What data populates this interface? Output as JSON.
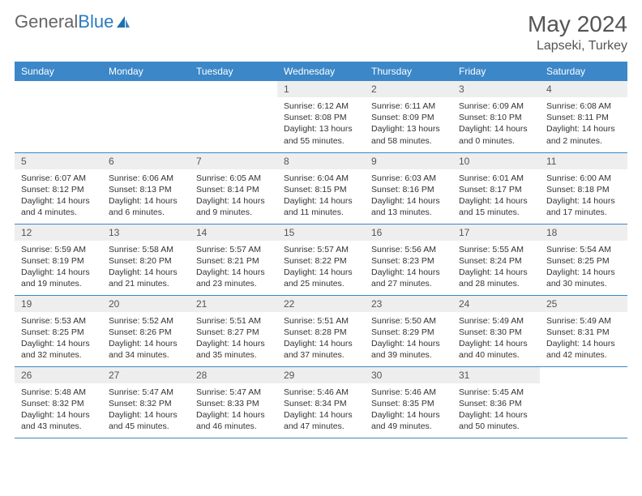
{
  "brand": {
    "part1": "General",
    "part2": "Blue"
  },
  "title": "May 2024",
  "location": "Lapseki, Turkey",
  "colors": {
    "header_bg": "#3b87c8",
    "header_text": "#ffffff",
    "daynum_bg": "#eeeeee",
    "border": "#3b87c8",
    "logo_blue": "#2b7bbf"
  },
  "weekdays": [
    "Sunday",
    "Monday",
    "Tuesday",
    "Wednesday",
    "Thursday",
    "Friday",
    "Saturday"
  ],
  "weeks": [
    [
      {
        "empty": true
      },
      {
        "empty": true
      },
      {
        "empty": true
      },
      {
        "num": "1",
        "sunrise": "Sunrise: 6:12 AM",
        "sunset": "Sunset: 8:08 PM",
        "daylight": "Daylight: 13 hours and 55 minutes."
      },
      {
        "num": "2",
        "sunrise": "Sunrise: 6:11 AM",
        "sunset": "Sunset: 8:09 PM",
        "daylight": "Daylight: 13 hours and 58 minutes."
      },
      {
        "num": "3",
        "sunrise": "Sunrise: 6:09 AM",
        "sunset": "Sunset: 8:10 PM",
        "daylight": "Daylight: 14 hours and 0 minutes."
      },
      {
        "num": "4",
        "sunrise": "Sunrise: 6:08 AM",
        "sunset": "Sunset: 8:11 PM",
        "daylight": "Daylight: 14 hours and 2 minutes."
      }
    ],
    [
      {
        "num": "5",
        "sunrise": "Sunrise: 6:07 AM",
        "sunset": "Sunset: 8:12 PM",
        "daylight": "Daylight: 14 hours and 4 minutes."
      },
      {
        "num": "6",
        "sunrise": "Sunrise: 6:06 AM",
        "sunset": "Sunset: 8:13 PM",
        "daylight": "Daylight: 14 hours and 6 minutes."
      },
      {
        "num": "7",
        "sunrise": "Sunrise: 6:05 AM",
        "sunset": "Sunset: 8:14 PM",
        "daylight": "Daylight: 14 hours and 9 minutes."
      },
      {
        "num": "8",
        "sunrise": "Sunrise: 6:04 AM",
        "sunset": "Sunset: 8:15 PM",
        "daylight": "Daylight: 14 hours and 11 minutes."
      },
      {
        "num": "9",
        "sunrise": "Sunrise: 6:03 AM",
        "sunset": "Sunset: 8:16 PM",
        "daylight": "Daylight: 14 hours and 13 minutes."
      },
      {
        "num": "10",
        "sunrise": "Sunrise: 6:01 AM",
        "sunset": "Sunset: 8:17 PM",
        "daylight": "Daylight: 14 hours and 15 minutes."
      },
      {
        "num": "11",
        "sunrise": "Sunrise: 6:00 AM",
        "sunset": "Sunset: 8:18 PM",
        "daylight": "Daylight: 14 hours and 17 minutes."
      }
    ],
    [
      {
        "num": "12",
        "sunrise": "Sunrise: 5:59 AM",
        "sunset": "Sunset: 8:19 PM",
        "daylight": "Daylight: 14 hours and 19 minutes."
      },
      {
        "num": "13",
        "sunrise": "Sunrise: 5:58 AM",
        "sunset": "Sunset: 8:20 PM",
        "daylight": "Daylight: 14 hours and 21 minutes."
      },
      {
        "num": "14",
        "sunrise": "Sunrise: 5:57 AM",
        "sunset": "Sunset: 8:21 PM",
        "daylight": "Daylight: 14 hours and 23 minutes."
      },
      {
        "num": "15",
        "sunrise": "Sunrise: 5:57 AM",
        "sunset": "Sunset: 8:22 PM",
        "daylight": "Daylight: 14 hours and 25 minutes."
      },
      {
        "num": "16",
        "sunrise": "Sunrise: 5:56 AM",
        "sunset": "Sunset: 8:23 PM",
        "daylight": "Daylight: 14 hours and 27 minutes."
      },
      {
        "num": "17",
        "sunrise": "Sunrise: 5:55 AM",
        "sunset": "Sunset: 8:24 PM",
        "daylight": "Daylight: 14 hours and 28 minutes."
      },
      {
        "num": "18",
        "sunrise": "Sunrise: 5:54 AM",
        "sunset": "Sunset: 8:25 PM",
        "daylight": "Daylight: 14 hours and 30 minutes."
      }
    ],
    [
      {
        "num": "19",
        "sunrise": "Sunrise: 5:53 AM",
        "sunset": "Sunset: 8:25 PM",
        "daylight": "Daylight: 14 hours and 32 minutes."
      },
      {
        "num": "20",
        "sunrise": "Sunrise: 5:52 AM",
        "sunset": "Sunset: 8:26 PM",
        "daylight": "Daylight: 14 hours and 34 minutes."
      },
      {
        "num": "21",
        "sunrise": "Sunrise: 5:51 AM",
        "sunset": "Sunset: 8:27 PM",
        "daylight": "Daylight: 14 hours and 35 minutes."
      },
      {
        "num": "22",
        "sunrise": "Sunrise: 5:51 AM",
        "sunset": "Sunset: 8:28 PM",
        "daylight": "Daylight: 14 hours and 37 minutes."
      },
      {
        "num": "23",
        "sunrise": "Sunrise: 5:50 AM",
        "sunset": "Sunset: 8:29 PM",
        "daylight": "Daylight: 14 hours and 39 minutes."
      },
      {
        "num": "24",
        "sunrise": "Sunrise: 5:49 AM",
        "sunset": "Sunset: 8:30 PM",
        "daylight": "Daylight: 14 hours and 40 minutes."
      },
      {
        "num": "25",
        "sunrise": "Sunrise: 5:49 AM",
        "sunset": "Sunset: 8:31 PM",
        "daylight": "Daylight: 14 hours and 42 minutes."
      }
    ],
    [
      {
        "num": "26",
        "sunrise": "Sunrise: 5:48 AM",
        "sunset": "Sunset: 8:32 PM",
        "daylight": "Daylight: 14 hours and 43 minutes."
      },
      {
        "num": "27",
        "sunrise": "Sunrise: 5:47 AM",
        "sunset": "Sunset: 8:32 PM",
        "daylight": "Daylight: 14 hours and 45 minutes."
      },
      {
        "num": "28",
        "sunrise": "Sunrise: 5:47 AM",
        "sunset": "Sunset: 8:33 PM",
        "daylight": "Daylight: 14 hours and 46 minutes."
      },
      {
        "num": "29",
        "sunrise": "Sunrise: 5:46 AM",
        "sunset": "Sunset: 8:34 PM",
        "daylight": "Daylight: 14 hours and 47 minutes."
      },
      {
        "num": "30",
        "sunrise": "Sunrise: 5:46 AM",
        "sunset": "Sunset: 8:35 PM",
        "daylight": "Daylight: 14 hours and 49 minutes."
      },
      {
        "num": "31",
        "sunrise": "Sunrise: 5:45 AM",
        "sunset": "Sunset: 8:36 PM",
        "daylight": "Daylight: 14 hours and 50 minutes."
      },
      {
        "empty": true
      }
    ]
  ]
}
